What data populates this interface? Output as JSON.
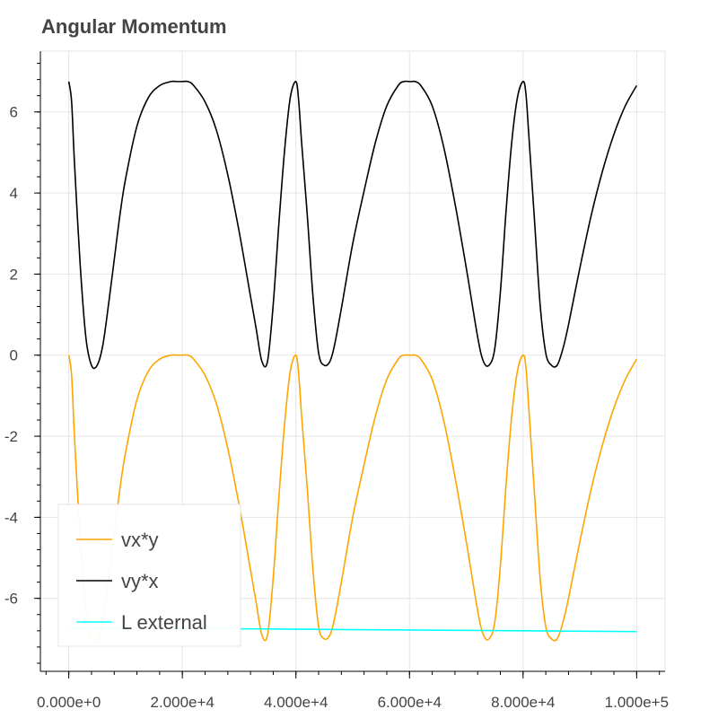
{
  "chart_data": {
    "type": "line",
    "title": "Angular Momentum",
    "xlabel": "",
    "ylabel": "",
    "xlim": [
      -5000,
      105000
    ],
    "ylim": [
      -7.8,
      7.5
    ],
    "grid": true,
    "legend_position": "bottom-left",
    "x_ticks": [
      {
        "value": 0,
        "label": "0.000e+0"
      },
      {
        "value": 20000,
        "label": "2.000e+4"
      },
      {
        "value": 40000,
        "label": "4.000e+4"
      },
      {
        "value": 60000,
        "label": "6.000e+4"
      },
      {
        "value": 80000,
        "label": "8.000e+4"
      },
      {
        "value": 100000,
        "label": "1.000e+5"
      }
    ],
    "y_ticks": [
      {
        "value": 6,
        "label": "6"
      },
      {
        "value": 4,
        "label": "4"
      },
      {
        "value": 2,
        "label": "2"
      },
      {
        "value": 0,
        "label": "0"
      },
      {
        "value": -2,
        "label": "-2"
      },
      {
        "value": -4,
        "label": "-4"
      },
      {
        "value": -6,
        "label": "-6"
      }
    ],
    "series": [
      {
        "name": "vx*y",
        "color": "#ffa500",
        "x": [
          0,
          500,
          1000,
          2000,
          3000,
          4000,
          5000,
          6000,
          7000,
          8000,
          9000,
          10000,
          12000,
          14000,
          16000,
          18000,
          19000,
          20000,
          21000,
          22000,
          24000,
          26000,
          28000,
          30000,
          32000,
          33000,
          34000,
          35000,
          36000,
          37000,
          38000,
          39000,
          40000,
          40500,
          41000,
          42000,
          43000,
          44000,
          45000,
          46000,
          46800,
          48000,
          50000,
          52000,
          54000,
          56000,
          58000,
          59000,
          60000,
          60500,
          61000,
          62000,
          64000,
          66000,
          68000,
          70000,
          72000,
          73000,
          74000,
          75000,
          76000,
          77000,
          78000,
          79000,
          80000,
          80500,
          81000,
          82000,
          83000,
          84000,
          85000,
          86000,
          87000,
          88000,
          90000,
          92000,
          94000,
          96000,
          98000,
          100000
        ],
        "y": [
          0,
          -0.5,
          -2,
          -4.5,
          -6.3,
          -7.0,
          -7.0,
          -6.5,
          -5.5,
          -4.4,
          -3.3,
          -2.4,
          -1.1,
          -0.4,
          -0.1,
          0,
          0,
          0,
          0,
          -0.1,
          -0.5,
          -1.2,
          -2.3,
          -3.7,
          -5.3,
          -6.1,
          -6.9,
          -6.9,
          -5.5,
          -3.5,
          -1.7,
          -0.4,
          0,
          -0.5,
          -1.5,
          -3.3,
          -5.3,
          -6.7,
          -7.0,
          -6.9,
          -6.5,
          -5.6,
          -4.0,
          -2.7,
          -1.5,
          -0.6,
          -0.1,
          0,
          0,
          0,
          0,
          -0.1,
          -0.6,
          -1.6,
          -3.0,
          -4.6,
          -6.3,
          -6.9,
          -7.0,
          -6.6,
          -5.2,
          -3.2,
          -1.5,
          -0.4,
          0,
          -0.3,
          -1.3,
          -3.4,
          -5.5,
          -6.7,
          -7.0,
          -7.0,
          -6.6,
          -6.0,
          -4.6,
          -3.3,
          -2.2,
          -1.3,
          -0.6,
          -0.1
        ]
      },
      {
        "name": "vy*x",
        "color": "#000000",
        "x": [
          0,
          500,
          1000,
          2000,
          3000,
          4000,
          5000,
          6000,
          7000,
          8000,
          9000,
          10000,
          12000,
          14000,
          16000,
          18000,
          19000,
          20000,
          21000,
          22000,
          24000,
          26000,
          28000,
          30000,
          32000,
          33000,
          34000,
          35000,
          36000,
          37000,
          38000,
          39000,
          40000,
          40500,
          41000,
          42000,
          43000,
          44000,
          45000,
          46000,
          46800,
          48000,
          50000,
          52000,
          54000,
          56000,
          58000,
          59000,
          60000,
          60500,
          61000,
          62000,
          64000,
          66000,
          68000,
          70000,
          72000,
          73000,
          74000,
          75000,
          76000,
          77000,
          78000,
          79000,
          80000,
          80500,
          81000,
          82000,
          83000,
          84000,
          85000,
          86000,
          87000,
          88000,
          90000,
          92000,
          94000,
          96000,
          98000,
          100000
        ],
        "y": [
          6.75,
          6.25,
          4.75,
          2.25,
          0.45,
          -0.25,
          -0.25,
          0.25,
          1.25,
          2.35,
          3.45,
          4.35,
          5.65,
          6.35,
          6.65,
          6.75,
          6.75,
          6.75,
          6.75,
          6.65,
          6.25,
          5.55,
          4.45,
          3.05,
          1.45,
          0.65,
          -0.15,
          -0.15,
          1.25,
          3.25,
          5.05,
          6.35,
          6.75,
          6.25,
          5.25,
          3.45,
          1.45,
          0.05,
          -0.25,
          -0.15,
          0.25,
          1.15,
          2.75,
          4.05,
          5.25,
          6.15,
          6.65,
          6.75,
          6.75,
          6.75,
          6.75,
          6.65,
          6.15,
          5.15,
          3.75,
          2.15,
          0.45,
          -0.15,
          -0.25,
          0.15,
          1.55,
          3.55,
          5.25,
          6.35,
          6.75,
          6.45,
          5.45,
          3.35,
          1.25,
          0.05,
          -0.25,
          -0.25,
          0.15,
          0.75,
          2.15,
          3.45,
          4.55,
          5.45,
          6.15,
          6.65
        ]
      },
      {
        "name": "L external",
        "color": "#00ffff",
        "x": [
          0,
          20000,
          40000,
          60000,
          80000,
          100000
        ],
        "y": [
          -6.72,
          -6.74,
          -6.76,
          -6.78,
          -6.8,
          -6.82
        ]
      }
    ]
  }
}
